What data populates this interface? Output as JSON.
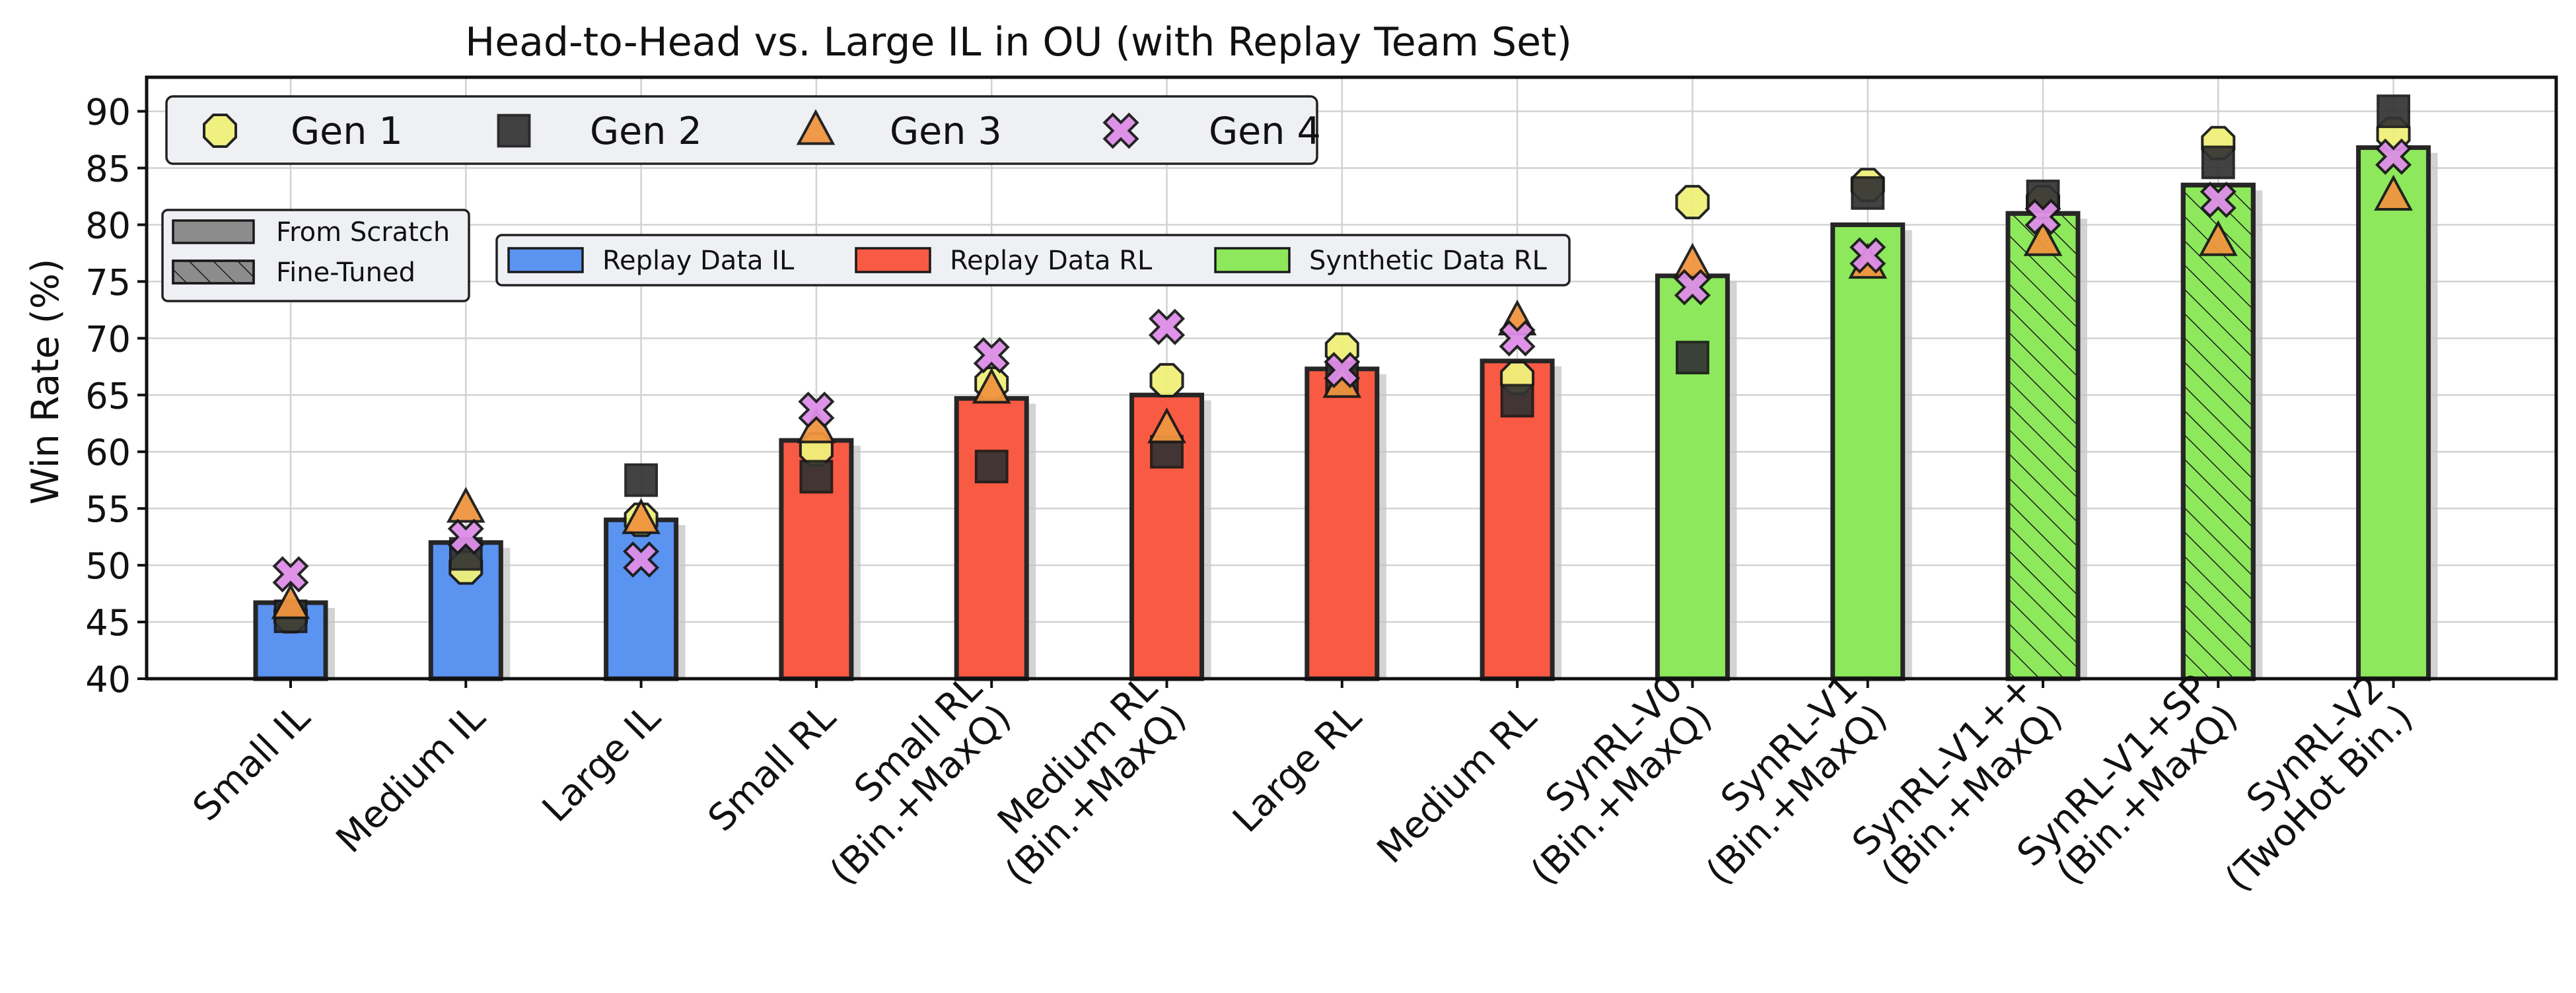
{
  "chart_data": {
    "type": "bar",
    "title": "Head-to-Head vs. Large IL in OU (with Replay Team Set)",
    "xlabel": "",
    "ylabel": "Win Rate (%)",
    "ylim": [
      40,
      93
    ],
    "yticks": [
      40,
      45,
      50,
      55,
      60,
      65,
      70,
      75,
      80,
      85,
      90
    ],
    "grid": true,
    "categories": [
      [
        "Small IL"
      ],
      [
        "Medium IL"
      ],
      [
        "Large IL"
      ],
      [
        "Small RL"
      ],
      [
        "Small RL",
        "(Bin.+MaxQ)"
      ],
      [
        "Medium RL",
        "(Bin.+MaxQ)"
      ],
      [
        "Large RL"
      ],
      [
        "Medium RL"
      ],
      [
        "SynRL-V0",
        "(Bin.+MaxQ)"
      ],
      [
        "SynRL-V1",
        "(Bin.+MaxQ)"
      ],
      [
        "SynRL-V1++",
        "(Bin.+MaxQ)"
      ],
      [
        "SynRL-V1+SP",
        "(Bin.+MaxQ)"
      ],
      [
        "SynRL-V2",
        "(TwoHot Bin.)"
      ]
    ],
    "bar_values": [
      46.7,
      52.0,
      54.0,
      61.0,
      64.7,
      65.0,
      67.3,
      68.0,
      75.5,
      80.0,
      81.0,
      83.5,
      86.8
    ],
    "bar_groups": [
      "Replay Data IL",
      "Replay Data IL",
      "Replay Data IL",
      "Replay Data RL",
      "Replay Data RL",
      "Replay Data RL",
      "Replay Data RL",
      "Replay Data RL",
      "Synthetic Data RL",
      "Synthetic Data RL",
      "Synthetic Data RL",
      "Synthetic Data RL",
      "Synthetic Data RL"
    ],
    "bar_training": [
      "From Scratch",
      "From Scratch",
      "From Scratch",
      "From Scratch",
      "From Scratch",
      "From Scratch",
      "From Scratch",
      "From Scratch",
      "From Scratch",
      "From Scratch",
      "Fine-Tuned",
      "Fine-Tuned",
      "From Scratch"
    ],
    "group_colors": {
      "Replay Data IL": "#5b93f0",
      "Replay Data RL": "#f95a43",
      "Synthetic Data RL": "#8de85c"
    },
    "series": [
      {
        "name": "Gen 1",
        "marker": "octagon",
        "color": "#f0f07a",
        "values": [
          45.5,
          49.8,
          54.0,
          60.2,
          66.0,
          66.3,
          69.0,
          66.5,
          82.0,
          83.5,
          82.0,
          87.2,
          88.0
        ]
      },
      {
        "name": "Gen 2",
        "marker": "square",
        "color": "#333333",
        "values": [
          45.5,
          51.0,
          57.5,
          57.8,
          58.7,
          60.0,
          66.5,
          64.5,
          68.3,
          82.8,
          82.5,
          85.5,
          90.0
        ]
      },
      {
        "name": "Gen 3",
        "marker": "triangle",
        "color": "#f09540",
        "values": [
          46.5,
          55.0,
          54.0,
          62.0,
          65.5,
          62.0,
          66.0,
          71.5,
          76.5,
          76.5,
          78.5,
          78.5,
          82.5
        ]
      },
      {
        "name": "Gen 4",
        "marker": "x",
        "color": "#dd8ee8",
        "values": [
          49.2,
          52.5,
          50.5,
          63.7,
          68.5,
          71.0,
          67.2,
          70.0,
          74.5,
          77.3,
          80.7,
          82.2,
          86.0
        ]
      }
    ],
    "legends": {
      "generations": [
        "Gen 1",
        "Gen 2",
        "Gen 3",
        "Gen 4"
      ],
      "training": [
        "From Scratch",
        "Fine-Tuned"
      ],
      "data": [
        "Replay Data IL",
        "Replay Data RL",
        "Synthetic Data RL"
      ]
    }
  }
}
